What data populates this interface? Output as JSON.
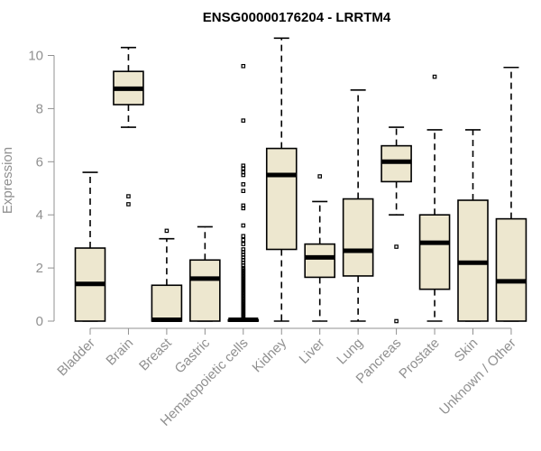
{
  "chart_data": {
    "type": "boxplot",
    "title": "ENSG00000176204 - LRRTM4",
    "xlabel": "",
    "ylabel": "Expression",
    "ylim": [
      0,
      10.7
    ],
    "yticks": [
      0,
      2,
      4,
      6,
      8,
      10
    ],
    "box_color": "#ede7cf",
    "categories": [
      "Bladder",
      "Brain",
      "Breast",
      "Gastric",
      "Hematopoietic cells",
      "Kidney",
      "Liver",
      "Lung",
      "Pancreas",
      "Prostate",
      "Skin",
      "Unknown / Other"
    ],
    "boxes": [
      {
        "name": "Bladder",
        "whisker_low": 0,
        "q1": 0,
        "median": 1.4,
        "q3": 2.75,
        "whisker_high": 5.6,
        "outliers": []
      },
      {
        "name": "Brain",
        "whisker_low": 7.3,
        "q1": 8.15,
        "median": 8.75,
        "q3": 9.4,
        "whisker_high": 10.3,
        "outliers": [
          4.7,
          4.4
        ]
      },
      {
        "name": "Breast",
        "whisker_low": 0,
        "q1": 0,
        "median": 0.05,
        "q3": 1.35,
        "whisker_high": 3.1,
        "outliers": [
          3.4
        ]
      },
      {
        "name": "Gastric",
        "whisker_low": 0,
        "q1": 0,
        "median": 1.6,
        "q3": 2.3,
        "whisker_high": 3.55,
        "outliers": []
      },
      {
        "name": "Hematopoietic cells",
        "whisker_low": 0,
        "q1": 0,
        "median": 0.05,
        "q3": 0.05,
        "whisker_high": 0.05,
        "outliers": [
          0.1,
          0.15,
          0.2,
          0.25,
          0.3,
          0.35,
          0.4,
          0.45,
          0.5,
          0.55,
          0.6,
          0.65,
          0.7,
          0.75,
          0.8,
          0.85,
          0.9,
          0.95,
          1.0,
          1.05,
          1.1,
          1.15,
          1.2,
          1.25,
          1.3,
          1.35,
          1.4,
          1.45,
          1.5,
          1.55,
          1.6,
          1.65,
          1.7,
          1.75,
          1.8,
          1.85,
          1.9,
          1.95,
          2.0,
          2.1,
          2.2,
          2.3,
          2.4,
          2.5,
          2.6,
          2.7,
          2.9,
          3.05,
          3.2,
          3.6,
          4.25,
          4.35,
          4.9,
          5.15,
          5.5,
          5.6,
          5.75,
          5.85,
          7.55,
          9.6
        ]
      },
      {
        "name": "Kidney",
        "whisker_low": 0,
        "q1": 2.7,
        "median": 5.5,
        "q3": 6.5,
        "whisker_high": 10.65,
        "outliers": []
      },
      {
        "name": "Liver",
        "whisker_low": 0,
        "q1": 1.65,
        "median": 2.4,
        "q3": 2.9,
        "whisker_high": 4.5,
        "outliers": [
          5.45
        ]
      },
      {
        "name": "Lung",
        "whisker_low": 0,
        "q1": 1.7,
        "median": 2.65,
        "q3": 4.6,
        "whisker_high": 8.7,
        "outliers": []
      },
      {
        "name": "Pancreas",
        "whisker_low": 4.0,
        "q1": 5.25,
        "median": 6.0,
        "q3": 6.6,
        "whisker_high": 7.3,
        "outliers": [
          2.8,
          0.0
        ]
      },
      {
        "name": "Prostate",
        "whisker_low": 0,
        "q1": 1.2,
        "median": 2.95,
        "q3": 4.0,
        "whisker_high": 7.2,
        "outliers": [
          9.2
        ]
      },
      {
        "name": "Skin",
        "whisker_low": 0,
        "q1": 0,
        "median": 2.2,
        "q3": 4.55,
        "whisker_high": 7.2,
        "outliers": []
      },
      {
        "name": "Unknown / Other",
        "whisker_low": 0,
        "q1": 0,
        "median": 1.5,
        "q3": 3.85,
        "whisker_high": 9.55,
        "outliers": []
      }
    ]
  }
}
